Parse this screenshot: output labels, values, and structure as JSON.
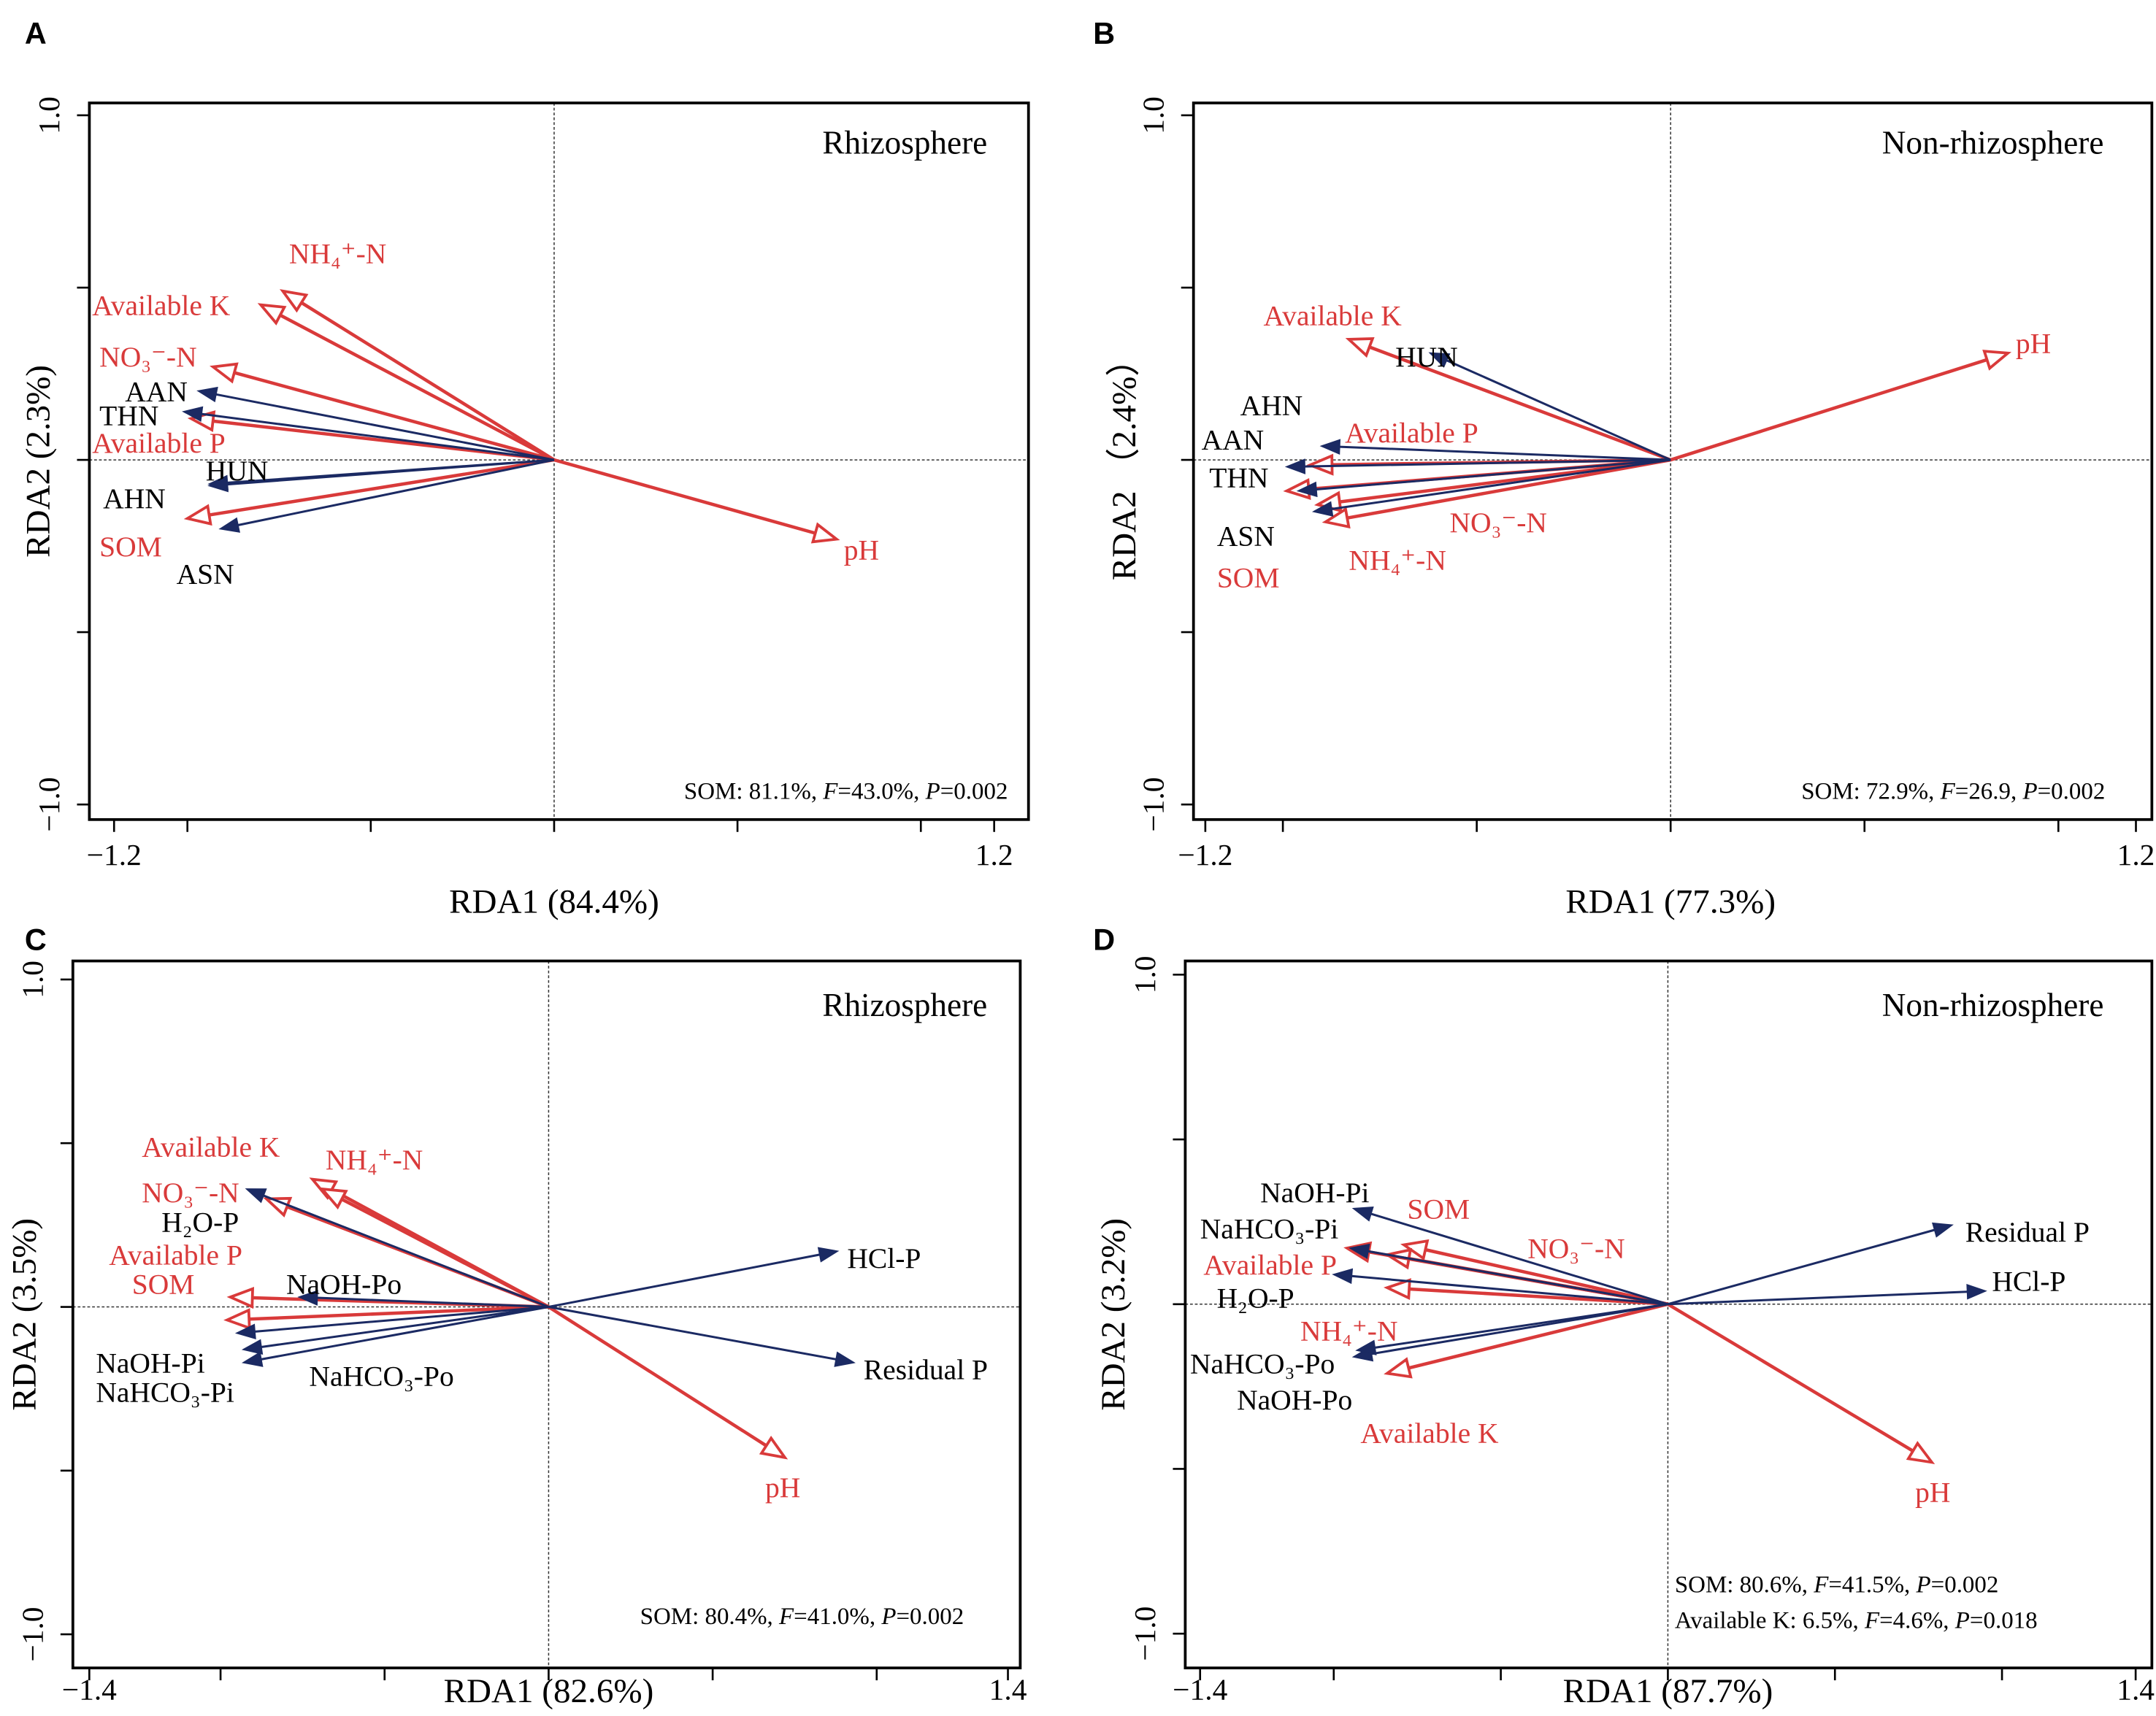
{
  "colors": {
    "environmental": "#d93a3a",
    "response": "#1b2a63",
    "text_response": "#000000"
  },
  "chart_data": [
    {
      "panel": "A",
      "type": "scatter",
      "subtype": "rda-biplot",
      "title": "Rhizosphere",
      "xlabel": "RDA1 (84.4%)",
      "ylabel": "RDA2 (2.3%)",
      "xlim": [
        -1.2,
        1.2
      ],
      "ylim": [
        -1.0,
        1.0
      ],
      "xticks": [
        -1.2,
        -1.0,
        -0.5,
        0,
        0.5,
        1.0,
        1.2
      ],
      "xtick_labels": {
        "-1.2": "−1.2",
        "1.2": "1.2"
      },
      "yticks": [
        -1.0,
        -0.5,
        0,
        0.5,
        1.0
      ],
      "ytick_labels": {
        "-1": "−1.0",
        "1": "1.0"
      },
      "annotation": [
        "SOM: 81.1%, F=43.0%, P=0.002"
      ],
      "series": [
        {
          "name": "environmental",
          "vectors": [
            {
              "label": "NH₄⁺-N",
              "x": -0.74,
              "y": 0.49,
              "lx": -0.59,
              "ly": 0.59,
              "anchor": "middle"
            },
            {
              "label": "Available K",
              "x": -0.8,
              "y": 0.45,
              "lx": -1.26,
              "ly": 0.44,
              "anchor": "start"
            },
            {
              "label": "NO₃⁻-N",
              "x": -0.93,
              "y": 0.27,
              "lx": -1.24,
              "ly": 0.29,
              "anchor": "start"
            },
            {
              "label": "Available P",
              "x": -0.99,
              "y": 0.12,
              "lx": -1.26,
              "ly": 0.04,
              "anchor": "start"
            },
            {
              "label": "SOM",
              "x": -1.0,
              "y": -0.17,
              "lx": -1.24,
              "ly": -0.26,
              "anchor": "start"
            },
            {
              "label": "pH",
              "x": 0.77,
              "y": -0.23,
              "lx": 0.79,
              "ly": -0.27,
              "anchor": "start"
            }
          ]
        },
        {
          "name": "response",
          "vectors": [
            {
              "label": "AAN",
              "x": -0.97,
              "y": 0.2,
              "lx": -1.17,
              "ly": 0.19,
              "anchor": "start"
            },
            {
              "label": "THN",
              "x": -1.01,
              "y": 0.14,
              "lx": -1.24,
              "ly": 0.12,
              "anchor": "start"
            },
            {
              "label": "HUN",
              "x": -0.94,
              "y": -0.07,
              "lx": -0.95,
              "ly": -0.04,
              "anchor": "start"
            },
            {
              "label": "AHN",
              "x": -0.94,
              "y": -0.075,
              "lx": -1.23,
              "ly": -0.12,
              "anchor": "start"
            },
            {
              "label": "ASN",
              "x": -0.91,
              "y": -0.2,
              "lx": -1.03,
              "ly": -0.34,
              "anchor": "start"
            }
          ]
        }
      ]
    },
    {
      "panel": "B",
      "type": "scatter",
      "subtype": "rda-biplot",
      "title": "Non-rhizosphere",
      "xlabel": "RDA1 (77.3%)",
      "ylabel": "RDA2 （2.4%）",
      "xlim": [
        -1.2,
        1.2
      ],
      "ylim": [
        -1.0,
        1.0
      ],
      "xticks": [
        -1.2,
        -1.0,
        -0.5,
        0,
        0.5,
        1.0,
        1.2
      ],
      "xtick_labels": {
        "-1.2": "−1.2",
        "1.2": "1.2"
      },
      "yticks": [
        -1.0,
        -0.5,
        0,
        0.5,
        1.0
      ],
      "ytick_labels": {
        "-1": "−1.0",
        "1": "1.0"
      },
      "annotation": [
        "SOM: 72.9%, F=26.9, P=0.002"
      ],
      "series": [
        {
          "name": "environmental",
          "vectors": [
            {
              "label": "Available K",
              "x": -0.83,
              "y": 0.35,
              "lx": -1.05,
              "ly": 0.41,
              "anchor": "start"
            },
            {
              "label": "Available P",
              "x": -0.93,
              "y": -0.015,
              "lx": -0.84,
              "ly": 0.07,
              "anchor": "start"
            },
            {
              "label": "NO₃⁻-N",
              "x": -0.99,
              "y": -0.09,
              "lx": -0.57,
              "ly": -0.19,
              "anchor": "start"
            },
            {
              "label": "NH₄⁺-N",
              "x": -0.91,
              "y": -0.13,
              "lx": -0.83,
              "ly": -0.3,
              "anchor": "start"
            },
            {
              "label": "SOM",
              "x": -0.89,
              "y": -0.18,
              "lx": -1.17,
              "ly": -0.35,
              "anchor": "start"
            },
            {
              "label": "pH",
              "x": 0.87,
              "y": 0.31,
              "lx": 0.89,
              "ly": 0.33,
              "anchor": "start"
            }
          ]
        },
        {
          "name": "response",
          "vectors": [
            {
              "label": "HUN",
              "x": -0.62,
              "y": 0.31,
              "lx": -0.71,
              "ly": 0.29,
              "anchor": "start"
            },
            {
              "label": "AHN",
              "x": -0.96,
              "y": -0.09,
              "lx": -1.11,
              "ly": 0.15,
              "anchor": "start"
            },
            {
              "label": "AAN",
              "x": -0.9,
              "y": 0.04,
              "lx": -1.21,
              "ly": 0.05,
              "anchor": "start"
            },
            {
              "label": "THN",
              "x": -0.99,
              "y": -0.02,
              "lx": -1.19,
              "ly": -0.06,
              "anchor": "start"
            },
            {
              "label": "ASN",
              "x": -0.92,
              "y": -0.15,
              "lx": -1.17,
              "ly": -0.23,
              "anchor": "start"
            }
          ]
        }
      ]
    },
    {
      "panel": "C",
      "type": "scatter",
      "subtype": "rda-biplot",
      "title": "Rhizosphere",
      "xlabel": "RDA1 (82.6%)",
      "ylabel": "RDA2 (3.5%)",
      "xlim": [
        -1.4,
        1.4
      ],
      "ylim": [
        -1.0,
        1.0
      ],
      "xticks": [
        -1.4,
        -1.0,
        -0.5,
        0,
        0.5,
        1.0,
        1.4
      ],
      "xtick_labels": {
        "-1.4": "−1.4",
        "1.4": "1.4"
      },
      "yticks": [
        -1.0,
        -0.5,
        0,
        0.5,
        1.0
      ],
      "ytick_labels": {
        "-1": "−1.0",
        "1": "1.0"
      },
      "annotation": [
        "SOM: 80.4%, F=41.0%, P=0.002"
      ],
      "series": [
        {
          "name": "environmental",
          "vectors": [
            {
              "label": "Available K",
              "x": -0.72,
              "y": 0.39,
              "lx": -1.24,
              "ly": 0.48,
              "anchor": "start"
            },
            {
              "label": "NH₄⁺-N",
              "x": -0.69,
              "y": 0.36,
              "lx": -0.68,
              "ly": 0.44,
              "anchor": "start"
            },
            {
              "label": "NO₃⁻-N",
              "x": -0.86,
              "y": 0.33,
              "lx": -1.24,
              "ly": 0.34,
              "anchor": "start"
            },
            {
              "label": "Available P",
              "x": -0.97,
              "y": 0.03,
              "lx": -1.34,
              "ly": 0.15,
              "anchor": "start"
            },
            {
              "label": "SOM",
              "x": -0.98,
              "y": -0.04,
              "lx": -1.27,
              "ly": 0.06,
              "anchor": "start"
            },
            {
              "label": "pH",
              "x": 0.72,
              "y": -0.46,
              "lx": 0.66,
              "ly": -0.56,
              "anchor": "start"
            }
          ]
        },
        {
          "name": "response",
          "vectors": [
            {
              "label": "H₂O-P",
              "x": -0.92,
              "y": 0.36,
              "lx": -1.18,
              "ly": 0.25,
              "anchor": "start"
            },
            {
              "label": "NaOH-Po",
              "x": -0.76,
              "y": 0.03,
              "lx": -0.8,
              "ly": 0.06,
              "anchor": "start"
            },
            {
              "label": "NaOH-Pi",
              "x": -0.95,
              "y": -0.08,
              "lx": -1.38,
              "ly": -0.18,
              "anchor": "start"
            },
            {
              "label": "NaHCO₃-Pi",
              "x": -0.93,
              "y": -0.13,
              "lx": -1.38,
              "ly": -0.27,
              "anchor": "start"
            },
            {
              "label": "NaHCO₃-Po",
              "x": -0.93,
              "y": -0.17,
              "lx": -0.73,
              "ly": -0.22,
              "anchor": "start"
            },
            {
              "label": "HCl-P",
              "x": 0.88,
              "y": 0.17,
              "lx": 0.91,
              "ly": 0.14,
              "anchor": "start"
            },
            {
              "label": "Residual P",
              "x": 0.93,
              "y": -0.17,
              "lx": 0.96,
              "ly": -0.2,
              "anchor": "start"
            }
          ]
        }
      ]
    },
    {
      "panel": "D",
      "type": "scatter",
      "subtype": "rda-biplot",
      "title": "Non-rhizosphere",
      "xlabel": "RDA1 (87.7%)",
      "ylabel": "RDA2 (3.2%)",
      "xlim": [
        -1.4,
        1.4
      ],
      "ylim": [
        -1.0,
        1.0
      ],
      "xticks": [
        -1.4,
        -1.0,
        -0.5,
        0,
        0.5,
        1.0,
        1.4
      ],
      "xtick_labels": {
        "-1.4": "−1.4",
        "1.4": "1.4"
      },
      "yticks": [
        -1.0,
        -0.5,
        0,
        0.5,
        1.0
      ],
      "ytick_labels": {
        "-1": "−1.0",
        "1": "1.0"
      },
      "annotation": [
        "SOM: 80.6%, F=41.5%, P=0.002",
        "Available K: 6.5%, F=4.6%, P=0.018"
      ],
      "series": [
        {
          "name": "environmental",
          "vectors": [
            {
              "label": "SOM",
              "x": -0.79,
              "y": 0.18,
              "lx": -0.78,
              "ly": 0.28,
              "anchor": "start"
            },
            {
              "label": "NO₃⁻-N",
              "x": -0.84,
              "y": 0.15,
              "lx": -0.42,
              "ly": 0.16,
              "anchor": "start"
            },
            {
              "label": "Available P",
              "x": -0.96,
              "y": 0.17,
              "lx": -1.39,
              "ly": 0.11,
              "anchor": "start"
            },
            {
              "label": "NH₄⁺-N",
              "x": -0.84,
              "y": 0.05,
              "lx": -1.1,
              "ly": -0.09,
              "anchor": "start"
            },
            {
              "label": "Available K",
              "x": -0.84,
              "y": -0.21,
              "lx": -0.92,
              "ly": -0.4,
              "anchor": "start"
            },
            {
              "label": "pH",
              "x": 0.79,
              "y": -0.48,
              "lx": 0.74,
              "ly": -0.58,
              "anchor": "start"
            }
          ]
        },
        {
          "name": "response",
          "vectors": [
            {
              "label": "NaOH-Pi",
              "x": -0.94,
              "y": 0.29,
              "lx": -1.22,
              "ly": 0.33,
              "anchor": "start"
            },
            {
              "label": "NaHCO₃-Pi",
              "x": -0.95,
              "y": 0.17,
              "lx": -1.4,
              "ly": 0.22,
              "anchor": "start"
            },
            {
              "label": "H₂O-P",
              "x": -1.0,
              "y": 0.09,
              "lx": -1.35,
              "ly": 0.01,
              "anchor": "start"
            },
            {
              "label": "NaHCO₃-Po",
              "x": -0.94,
              "y": -0.16,
              "lx": -1.43,
              "ly": -0.19,
              "anchor": "start"
            },
            {
              "label": "NaOH-Po",
              "x": -0.93,
              "y": -0.14,
              "lx": -1.29,
              "ly": -0.3,
              "anchor": "start"
            },
            {
              "label": "Residual P",
              "x": 0.85,
              "y": 0.24,
              "lx": 0.89,
              "ly": 0.21,
              "anchor": "start"
            },
            {
              "label": "HCl-P",
              "x": 0.95,
              "y": 0.04,
              "lx": 0.97,
              "ly": 0.06,
              "anchor": "start"
            }
          ]
        }
      ]
    }
  ]
}
